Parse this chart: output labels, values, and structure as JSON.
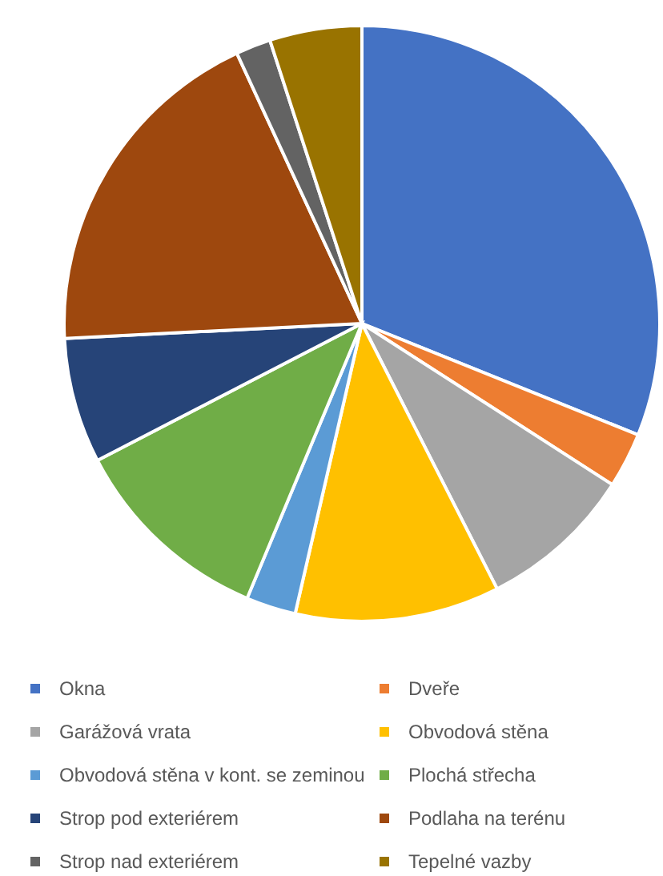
{
  "chart_data": {
    "type": "pie",
    "categories": [
      "Okna",
      "Dveře",
      "Garážová vrata",
      "Obvodová stěna",
      "Obvodová stěna v kont. se zeminou",
      "Plochá střecha",
      "Strop pod exteriérem",
      "Podlaha na terénu",
      "Strop nad exteriérem",
      "Tepelné vazby"
    ],
    "values": [
      31.1,
      3.0,
      8.4,
      11.1,
      2.7,
      11.1,
      6.8,
      18.9,
      1.9,
      5.0
    ],
    "colors": [
      "#4472c4",
      "#ed7d31",
      "#a5a5a5",
      "#ffc000",
      "#5b9bd5",
      "#70ad47",
      "#264478",
      "#9e480e",
      "#636363",
      "#997300"
    ],
    "legend": "bottom"
  }
}
